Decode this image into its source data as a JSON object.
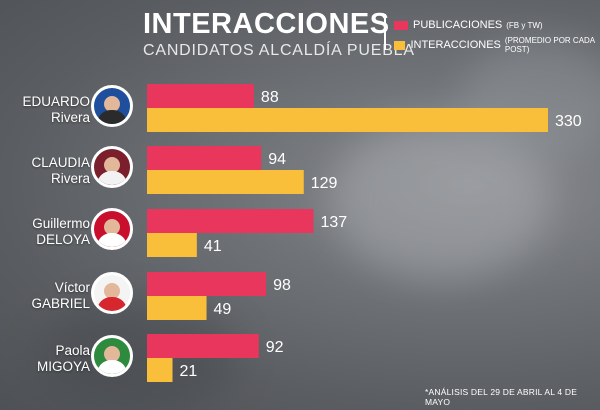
{
  "header": {
    "title": "INTERACCIONES",
    "subtitle": "CANDIDATOS ALCALDÍA PUEBLA"
  },
  "legend": {
    "items": [
      {
        "label": "PUBLICACIONES",
        "note": "(FB y TW)",
        "color": "#e8365d"
      },
      {
        "label": "INTERACCIONES",
        "note": "(PROMEDIO POR CADA POST)",
        "color": "#f9bf3b"
      }
    ]
  },
  "footnote": "*ANÁLISIS DEL 29 DE ABRIL AL 4 DE MAYO",
  "candidates": [
    {
      "first": "EDUARDO",
      "last": "Rivera",
      "avatar_color": "#1f4e9c"
    },
    {
      "first": "CLAUDIA",
      "last": "Rivera",
      "avatar_color": "#7a1f2b"
    },
    {
      "first": "Guillermo",
      "last": "DELOYA",
      "avatar_color": "#c8102e"
    },
    {
      "first": "Víctor",
      "last": "GABRIEL",
      "avatar_color": "#d6262e"
    },
    {
      "first": "Paola",
      "last": "MIGOYA",
      "avatar_color": "#2e8b3e"
    }
  ],
  "chart_data": {
    "type": "bar",
    "orientation": "horizontal",
    "title": "INTERACCIONES",
    "subtitle": "CANDIDATOS ALCALDÍA PUEBLA",
    "categories": [
      "EDUARDO Rivera",
      "CLAUDIA Rivera",
      "Guillermo DELOYA",
      "Víctor GABRIEL",
      "Paola MIGOYA"
    ],
    "series": [
      {
        "name": "PUBLICACIONES (FB y TW)",
        "color": "#e8365d",
        "values": [
          88,
          94,
          137,
          98,
          92
        ]
      },
      {
        "name": "INTERACCIONES (PROMEDIO POR CADA POST)",
        "color": "#f9bf3b",
        "values": [
          330,
          129,
          41,
          49,
          21
        ]
      }
    ],
    "xlim": [
      0,
      330
    ],
    "grid": false,
    "legend_position": "top-right",
    "data_labels": true
  }
}
